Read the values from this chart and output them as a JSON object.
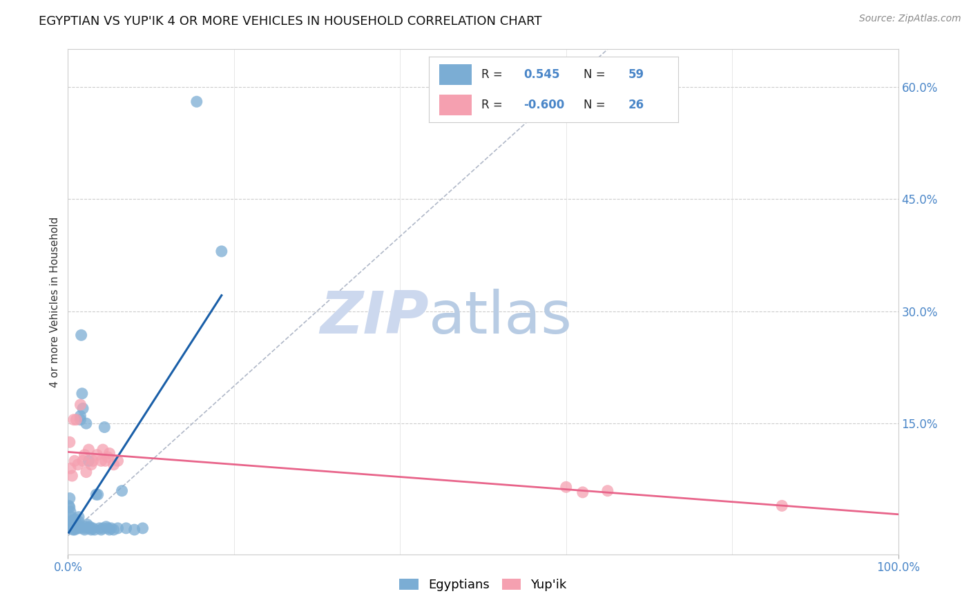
{
  "title": "EGYPTIAN VS YUP'IK 4 OR MORE VEHICLES IN HOUSEHOLD CORRELATION CHART",
  "source": "Source: ZipAtlas.com",
  "ylabel": "4 or more Vehicles in Household",
  "xlim": [
    0.0,
    1.0
  ],
  "ylim": [
    -0.025,
    0.65
  ],
  "yticks_right": [
    0.0,
    0.15,
    0.3,
    0.45,
    0.6
  ],
  "ytick_labels_right": [
    "",
    "15.0%",
    "30.0%",
    "45.0%",
    "60.0%"
  ],
  "grid_color": "#cccccc",
  "background_color": "#ffffff",
  "blue_color": "#7badd4",
  "pink_color": "#f5a0b0",
  "blue_line_color": "#1a5fa8",
  "pink_line_color": "#e8648a",
  "axis_label_color": "#4a86c8",
  "watermark_zip_color": "#ccd8ee",
  "watermark_atlas_color": "#b8cce4",
  "egyptians_x": [
    0.001,
    0.002,
    0.002,
    0.003,
    0.003,
    0.004,
    0.004,
    0.005,
    0.005,
    0.006,
    0.006,
    0.007,
    0.007,
    0.008,
    0.008,
    0.009,
    0.009,
    0.01,
    0.01,
    0.011,
    0.012,
    0.012,
    0.013,
    0.014,
    0.015,
    0.015,
    0.016,
    0.017,
    0.018,
    0.019,
    0.02,
    0.021,
    0.022,
    0.023,
    0.024,
    0.025,
    0.026,
    0.027,
    0.028,
    0.03,
    0.032,
    0.034,
    0.036,
    0.038,
    0.04,
    0.042,
    0.044,
    0.046,
    0.048,
    0.05,
    0.052,
    0.055,
    0.06,
    0.065,
    0.07,
    0.08,
    0.09,
    0.155,
    0.185
  ],
  "egyptians_y": [
    0.04,
    0.038,
    0.05,
    0.032,
    0.015,
    0.018,
    0.025,
    0.012,
    0.02,
    0.01,
    0.008,
    0.01,
    0.015,
    0.008,
    0.012,
    0.01,
    0.022,
    0.015,
    0.018,
    0.01,
    0.012,
    0.02,
    0.025,
    0.01,
    0.16,
    0.155,
    0.268,
    0.19,
    0.17,
    0.01,
    0.008,
    0.012,
    0.15,
    0.015,
    0.01,
    0.1,
    0.012,
    0.01,
    0.008,
    0.01,
    0.008,
    0.055,
    0.055,
    0.01,
    0.008,
    0.01,
    0.145,
    0.012,
    0.01,
    0.008,
    0.01,
    0.008,
    0.01,
    0.06,
    0.01,
    0.008,
    0.01,
    0.58,
    0.38
  ],
  "yupik_x": [
    0.002,
    0.003,
    0.005,
    0.007,
    0.008,
    0.01,
    0.012,
    0.015,
    0.018,
    0.02,
    0.022,
    0.025,
    0.028,
    0.03,
    0.035,
    0.04,
    0.042,
    0.045,
    0.048,
    0.05,
    0.055,
    0.06,
    0.6,
    0.62,
    0.65,
    0.86
  ],
  "yupik_y": [
    0.125,
    0.09,
    0.08,
    0.155,
    0.1,
    0.155,
    0.095,
    0.175,
    0.1,
    0.108,
    0.085,
    0.115,
    0.095,
    0.1,
    0.108,
    0.1,
    0.115,
    0.1,
    0.105,
    0.11,
    0.095,
    0.1,
    0.065,
    0.058,
    0.06,
    0.04
  ],
  "legend_text_color": "#4a86c8",
  "legend_label_color": "#222222",
  "legend_r1_text": "R =  0.545",
  "legend_n1_text": "N = 59",
  "legend_r2_text": "R = -0.600",
  "legend_n2_text": "N = 26"
}
